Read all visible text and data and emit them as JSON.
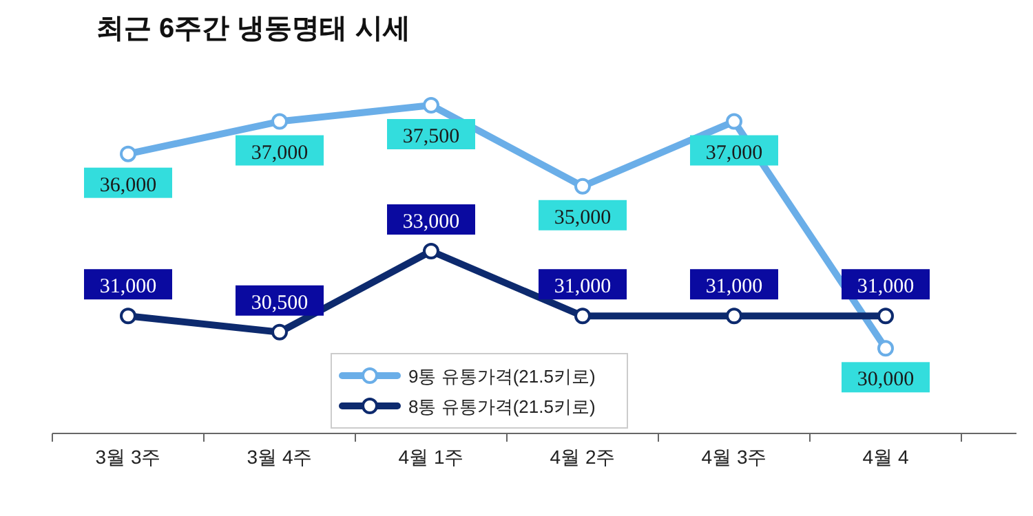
{
  "chart_data": {
    "type": "line",
    "title": "최근 6주간 냉동명태 시세",
    "categories": [
      "3월 3주",
      "3월 4주",
      "4월 1주",
      "4월 2주",
      "4월 3주",
      "4월 4"
    ],
    "series": [
      {
        "name": "9통 유통가격(21.5키로)",
        "color": "#6aaee8",
        "values": [
          36000,
          37000,
          37500,
          35000,
          37000,
          30000
        ],
        "value_labels": [
          "36,000",
          "37,000",
          "37,500",
          "35,000",
          "37,000",
          "30,000"
        ]
      },
      {
        "name": "8통 유통가격(21.5키로)",
        "color": "#0d2a6e",
        "values": [
          31000,
          30500,
          33000,
          31000,
          31000,
          31000
        ],
        "value_labels": [
          "31,000",
          "30,500",
          "33,000",
          "31,000",
          "31,000",
          "31,000"
        ]
      }
    ],
    "legend": "bottom",
    "marker": "circle",
    "line_style": "solid"
  }
}
